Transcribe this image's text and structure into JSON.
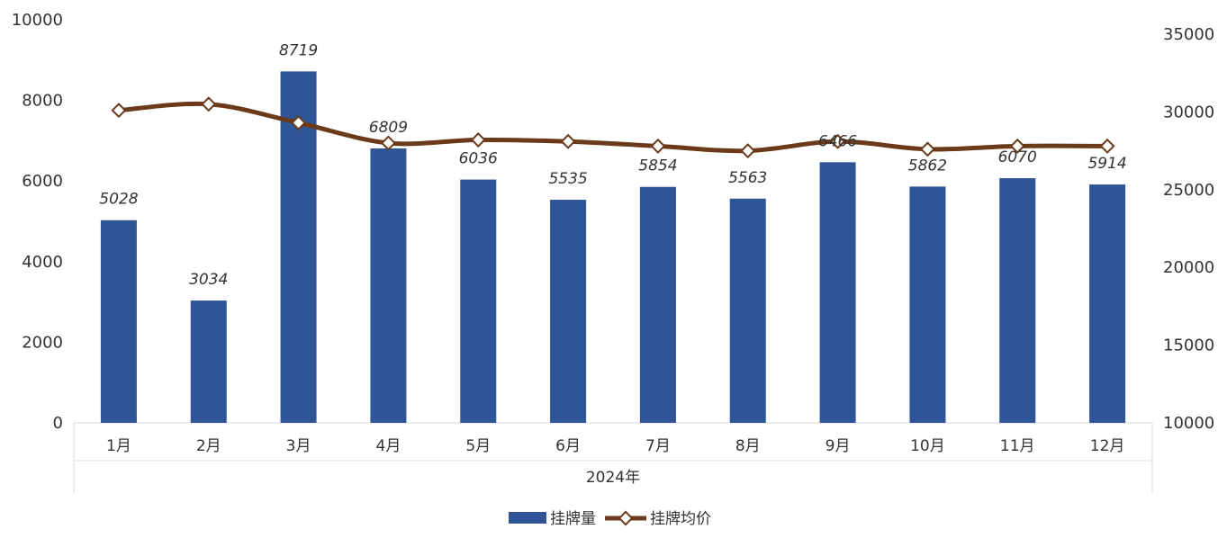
{
  "chart_data": {
    "type": "bar+line",
    "title": "",
    "group_label": "2024年",
    "categories": [
      "1月",
      "2月",
      "3月",
      "4月",
      "5月",
      "6月",
      "7月",
      "8月",
      "9月",
      "10月",
      "11月",
      "12月"
    ],
    "series": [
      {
        "name": "挂牌量",
        "type": "bar",
        "axis": "left",
        "color": "#2F5597",
        "values": [
          5028,
          3034,
          8719,
          6809,
          6036,
          5535,
          5854,
          5563,
          6466,
          5862,
          6070,
          5914
        ],
        "value_labels": [
          "5028",
          "3034",
          "8719",
          "6809",
          "6036",
          "5535",
          "5854",
          "5563",
          "6466",
          "5862",
          "6070",
          "5914"
        ]
      },
      {
        "name": "挂牌均价",
        "type": "line",
        "axis": "right",
        "color": "#6B3A1A",
        "values": [
          30100,
          30500,
          29300,
          28000,
          28200,
          28100,
          27800,
          27500,
          28100,
          27600,
          27800,
          27800
        ]
      }
    ],
    "y_left": {
      "min": 0,
      "max": 10000,
      "ticks": [
        "0",
        "2000",
        "4000",
        "6000",
        "8000",
        "10000"
      ]
    },
    "y_right": {
      "min": 10000,
      "max": 35000,
      "ticks": [
        "10000",
        "15000",
        "20000",
        "25000",
        "30000",
        "35000"
      ]
    },
    "legend_position": "bottom",
    "grid": false
  }
}
